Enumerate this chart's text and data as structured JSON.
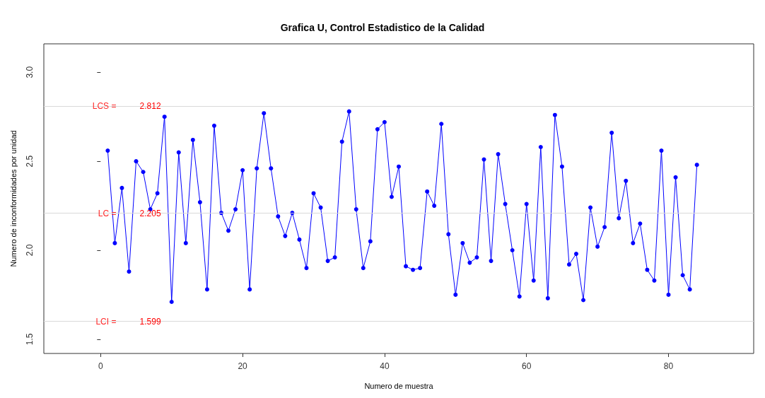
{
  "chart_data": {
    "type": "line",
    "title": "Grafica U, Control Estadistico de la Calidad",
    "xlabel": "Numero de muestra",
    "ylabel": "Numero de inconformidades por unidad",
    "x": [
      1,
      2,
      3,
      4,
      5,
      6,
      7,
      8,
      9,
      10,
      11,
      12,
      13,
      14,
      15,
      16,
      17,
      18,
      19,
      20,
      21,
      22,
      23,
      24,
      25,
      26,
      27,
      28,
      29,
      30,
      31,
      32,
      33,
      34,
      35,
      36,
      37,
      38,
      39,
      40,
      41,
      42,
      43,
      44,
      45,
      46,
      47,
      48,
      49,
      50,
      51,
      52,
      53,
      54,
      55,
      56,
      57,
      58,
      59,
      60,
      61,
      62,
      63,
      64,
      65,
      66,
      67,
      68,
      69,
      70,
      71,
      72,
      73,
      74,
      75,
      76,
      77,
      78,
      79,
      80,
      81,
      82,
      83,
      84
    ],
    "series": [
      {
        "color": "#0000ff",
        "values": [
          2.56,
          2.04,
          2.35,
          1.88,
          2.5,
          2.44,
          2.23,
          2.32,
          2.75,
          1.71,
          2.55,
          2.04,
          2.62,
          2.27,
          1.78,
          2.7,
          2.21,
          2.11,
          2.23,
          2.45,
          1.78,
          2.46,
          2.77,
          2.46,
          2.19,
          2.08,
          2.21,
          2.06,
          1.9,
          2.32,
          2.24,
          1.94,
          1.96,
          2.61,
          2.78,
          2.23,
          1.9,
          2.05,
          2.68,
          2.72,
          2.3,
          2.47,
          1.91,
          1.89,
          1.9,
          2.33,
          2.25,
          2.71,
          2.09,
          1.75,
          2.04,
          1.93,
          1.96,
          2.51,
          1.94,
          2.54,
          2.26,
          2.0,
          1.74,
          2.26,
          1.83,
          2.58,
          1.73,
          2.76,
          2.47,
          1.92,
          1.98,
          1.72,
          2.24,
          2.02,
          2.13,
          2.66,
          2.18,
          2.39,
          2.04,
          2.15,
          1.89,
          1.83,
          2.56,
          1.75,
          2.41,
          1.86,
          1.78,
          2.48
        ]
      }
    ],
    "xlim": [
      -8,
      92
    ],
    "xticks": [
      0,
      20,
      40,
      60,
      80
    ],
    "ylim": [
      1.42,
      3.16
    ],
    "yticks": [
      1.5,
      {
        "value": 2,
        "label": "2.0"
      },
      2.5,
      {
        "value": 3,
        "label": "3.0"
      }
    ],
    "marker": "circle",
    "line_style": "solid",
    "grid": false,
    "annotations": [
      {
        "text": "2.812",
        "y": 2.812
      },
      {
        "text": "2.205",
        "y": 2.205
      },
      {
        "text": "1.599",
        "y": 1.599
      }
    ],
    "ref_lines": [
      {
        "axis": "y",
        "value": 2.812,
        "label": "LCS =",
        "color": "#d9d9d9"
      },
      {
        "axis": "y",
        "value": 2.205,
        "label": "LC =",
        "color": "#d9d9d9"
      },
      {
        "axis": "y",
        "value": 1.599,
        "label": "LCI =",
        "color": "#d9d9d9"
      }
    ]
  }
}
